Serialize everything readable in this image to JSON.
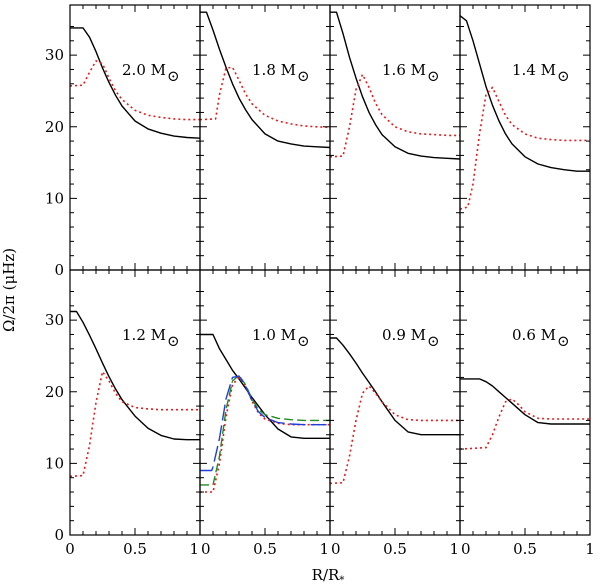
{
  "chart_data": {
    "type": "line",
    "xlabel": "R/R",
    "xlabel_subscript": "*",
    "ylabel": "Ω/2π  (μHz)",
    "xlim": [
      0,
      1
    ],
    "ylim": [
      0,
      37
    ],
    "xticks": [
      0,
      0.5,
      1
    ],
    "xtick_labels": [
      "0",
      "0.5",
      "1"
    ],
    "yticks": [
      0,
      10,
      20,
      30
    ],
    "ytick_labels": [
      "0",
      "10",
      "20",
      "30"
    ],
    "grid": false,
    "panels": [
      {
        "mass": "2.0 M",
        "solar_symbol": "⊙",
        "series": [
          {
            "style": "solid",
            "color": "#000000",
            "x": [
              0,
              0.1,
              0.15,
              0.2,
              0.25,
              0.3,
              0.35,
              0.4,
              0.5,
              0.6,
              0.7,
              0.8,
              0.9,
              1.0
            ],
            "y": [
              33.8,
              33.8,
              32.5,
              30.5,
              28.2,
              26.2,
              24.4,
              22.9,
              20.8,
              19.7,
              19.1,
              18.7,
              18.5,
              18.4
            ]
          },
          {
            "style": "dotted",
            "color": "#e41a1c",
            "x": [
              0,
              0.1,
              0.15,
              0.2,
              0.25,
              0.3,
              0.35,
              0.4,
              0.5,
              0.6,
              0.7,
              0.8,
              0.9,
              1.0
            ],
            "y": [
              25.7,
              25.8,
              27.6,
              29.2,
              28.8,
              26.8,
              25.0,
              23.8,
              22.3,
              21.6,
              21.3,
              21.1,
              21.0,
              21.0
            ]
          }
        ]
      },
      {
        "mass": "1.8 M",
        "solar_symbol": "⊙",
        "series": [
          {
            "style": "solid",
            "color": "#000000",
            "x": [
              0,
              0.05,
              0.1,
              0.15,
              0.2,
              0.25,
              0.3,
              0.35,
              0.4,
              0.5,
              0.6,
              0.7,
              0.8,
              0.9,
              1.0
            ],
            "y": [
              36.0,
              36.0,
              33.5,
              30.8,
              28.3,
              26.0,
              24.0,
              22.4,
              21.0,
              19.0,
              18.0,
              17.6,
              17.3,
              17.2,
              17.1
            ]
          },
          {
            "style": "dotted",
            "color": "#e41a1c",
            "x": [
              0,
              0.12,
              0.15,
              0.2,
              0.25,
              0.3,
              0.35,
              0.4,
              0.5,
              0.6,
              0.7,
              0.8,
              0.9,
              1.0
            ],
            "y": [
              21.0,
              21.1,
              24.5,
              28.2,
              28.3,
              26.5,
              24.6,
              23.2,
              21.6,
              20.8,
              20.4,
              20.1,
              20.0,
              19.9
            ]
          }
        ]
      },
      {
        "mass": "1.6 M",
        "solar_symbol": "⊙",
        "series": [
          {
            "style": "solid",
            "color": "#000000",
            "x": [
              0,
              0.05,
              0.1,
              0.15,
              0.2,
              0.25,
              0.3,
              0.35,
              0.4,
              0.5,
              0.6,
              0.7,
              0.8,
              0.9,
              1.0
            ],
            "y": [
              36.0,
              36.0,
              33.0,
              29.7,
              26.8,
              24.2,
              22.0,
              20.3,
              18.9,
              17.2,
              16.3,
              15.9,
              15.7,
              15.6,
              15.5
            ]
          },
          {
            "style": "dotted",
            "color": "#e41a1c",
            "x": [
              0,
              0.1,
              0.15,
              0.2,
              0.25,
              0.3,
              0.35,
              0.4,
              0.5,
              0.6,
              0.7,
              0.8,
              0.9,
              1.0
            ],
            "y": [
              15.8,
              15.9,
              20.0,
              25.2,
              27.3,
              25.5,
              23.3,
              21.7,
              20.0,
              19.3,
              19.0,
              18.9,
              18.8,
              18.8
            ]
          }
        ]
      },
      {
        "mass": "1.4 M",
        "solar_symbol": "⊙",
        "series": [
          {
            "style": "solid",
            "color": "#000000",
            "x": [
              0,
              0.05,
              0.1,
              0.15,
              0.2,
              0.25,
              0.3,
              0.35,
              0.4,
              0.5,
              0.6,
              0.7,
              0.8,
              0.9,
              1.0
            ],
            "y": [
              35.5,
              34.8,
              32.0,
              28.8,
              25.6,
              23.0,
              20.8,
              19.0,
              17.6,
              15.8,
              14.8,
              14.3,
              14.0,
              13.8,
              13.8
            ]
          },
          {
            "style": "dotted",
            "color": "#e41a1c",
            "x": [
              0,
              0.06,
              0.1,
              0.15,
              0.2,
              0.25,
              0.3,
              0.35,
              0.4,
              0.5,
              0.6,
              0.7,
              0.8,
              0.9,
              1.0
            ],
            "y": [
              8.5,
              8.8,
              12.0,
              19.0,
              24.5,
              25.5,
              23.5,
              21.6,
              20.3,
              19.0,
              18.4,
              18.2,
              18.1,
              18.1,
              18.1
            ]
          }
        ]
      },
      {
        "mass": "1.2 M",
        "solar_symbol": "⊙",
        "series": [
          {
            "style": "solid",
            "color": "#000000",
            "x": [
              0,
              0.05,
              0.1,
              0.15,
              0.2,
              0.25,
              0.3,
              0.35,
              0.4,
              0.5,
              0.6,
              0.7,
              0.8,
              0.9,
              1.0
            ],
            "y": [
              31.2,
              31.2,
              29.7,
              27.9,
              26.0,
              24.0,
              22.1,
              20.4,
              18.9,
              16.6,
              14.9,
              13.9,
              13.4,
              13.3,
              13.3
            ]
          },
          {
            "style": "dotted",
            "color": "#e41a1c",
            "x": [
              0,
              0.1,
              0.15,
              0.2,
              0.25,
              0.3,
              0.35,
              0.4,
              0.5,
              0.6,
              0.7,
              0.8,
              0.9,
              1.0
            ],
            "y": [
              8.2,
              8.3,
              12.5,
              18.5,
              22.8,
              21.5,
              19.8,
              18.6,
              17.8,
              17.6,
              17.5,
              17.5,
              17.5,
              17.5
            ]
          }
        ]
      },
      {
        "mass": "1.0 M",
        "solar_symbol": "⊙",
        "series": [
          {
            "style": "solid",
            "color": "#000000",
            "x": [
              0,
              0.1,
              0.15,
              0.2,
              0.25,
              0.3,
              0.35,
              0.4,
              0.5,
              0.6,
              0.7,
              0.8,
              0.9,
              1.0
            ],
            "y": [
              28.0,
              28.0,
              26.0,
              24.5,
              23.0,
              21.8,
              20.5,
              19.2,
              16.8,
              14.8,
              13.7,
              13.5,
              13.5,
              13.5
            ]
          },
          {
            "style": "dotted",
            "color": "#e41a1c",
            "x": [
              0,
              0.1,
              0.15,
              0.2,
              0.25,
              0.3,
              0.35,
              0.4,
              0.45,
              0.5,
              0.6,
              0.7,
              0.8,
              0.9,
              1.0
            ],
            "y": [
              6.0,
              6.0,
              10.0,
              16.5,
              21.0,
              22.0,
              20.8,
              18.7,
              17.0,
              16.2,
              15.6,
              15.4,
              15.4,
              15.4,
              15.4
            ]
          },
          {
            "style": "dashed",
            "color": "#228b22",
            "x": [
              0,
              0.1,
              0.15,
              0.2,
              0.25,
              0.3,
              0.35,
              0.4,
              0.45,
              0.5,
              0.6,
              0.7,
              0.8,
              0.9,
              1.0
            ],
            "y": [
              7.0,
              7.0,
              11.0,
              17.5,
              21.5,
              22.3,
              21.0,
              19.0,
              17.5,
              16.8,
              16.3,
              16.1,
              16.0,
              16.0,
              16.0
            ]
          },
          {
            "style": "longdash",
            "color": "#1f3fd8",
            "x": [
              0,
              0.09,
              0.1,
              0.15,
              0.2,
              0.25,
              0.3,
              0.35,
              0.4,
              0.45,
              0.5,
              0.6,
              0.7,
              0.8,
              0.9,
              1.0
            ],
            "y": [
              9.0,
              9.0,
              9.5,
              13.5,
              19.0,
              22.0,
              22.2,
              20.8,
              18.8,
              17.2,
              16.4,
              15.7,
              15.5,
              15.4,
              15.4,
              15.4
            ]
          }
        ]
      },
      {
        "mass": "0.9 M",
        "solar_symbol": "⊙",
        "series": [
          {
            "style": "solid",
            "color": "#000000",
            "x": [
              0,
              0.05,
              0.1,
              0.15,
              0.2,
              0.25,
              0.3,
              0.35,
              0.4,
              0.5,
              0.6,
              0.7,
              0.8,
              0.9,
              1.0
            ],
            "y": [
              27.5,
              27.5,
              26.5,
              25.3,
              24.0,
              22.6,
              21.3,
              20.0,
              18.6,
              16.0,
              14.4,
              14.0,
              14.0,
              14.0,
              14.0
            ]
          },
          {
            "style": "dotted",
            "color": "#e41a1c",
            "x": [
              0,
              0.1,
              0.15,
              0.2,
              0.25,
              0.3,
              0.35,
              0.4,
              0.5,
              0.6,
              0.7,
              0.8,
              0.9,
              1.0
            ],
            "y": [
              7.2,
              7.3,
              11.0,
              16.0,
              19.8,
              20.8,
              19.8,
              18.6,
              16.8,
              16.1,
              16.0,
              16.0,
              16.0,
              16.0
            ]
          }
        ]
      },
      {
        "mass": "0.6 M",
        "solar_symbol": "⊙",
        "series": [
          {
            "style": "solid",
            "color": "#000000",
            "x": [
              0,
              0.15,
              0.2,
              0.25,
              0.3,
              0.35,
              0.4,
              0.5,
              0.6,
              0.7,
              0.8,
              0.9,
              1.0
            ],
            "y": [
              21.8,
              21.8,
              21.4,
              20.8,
              20.0,
              19.2,
              18.4,
              16.8,
              15.7,
              15.5,
              15.5,
              15.5,
              15.5
            ]
          },
          {
            "style": "dotted",
            "color": "#e41a1c",
            "x": [
              0,
              0.2,
              0.25,
              0.3,
              0.35,
              0.4,
              0.45,
              0.5,
              0.6,
              0.7,
              0.8,
              0.9,
              1.0
            ],
            "y": [
              12.0,
              12.2,
              14.0,
              16.5,
              18.6,
              19.0,
              18.2,
              17.2,
              16.3,
              16.2,
              16.2,
              16.2,
              16.2
            ]
          }
        ]
      }
    ]
  }
}
